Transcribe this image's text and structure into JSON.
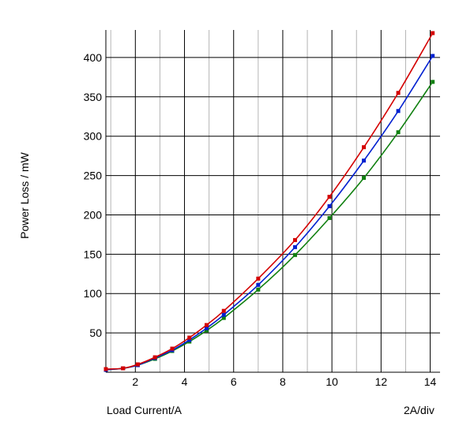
{
  "chart_data": {
    "type": "line",
    "title": "",
    "xlabel": "Load Current/A",
    "ylabel": "Power Loss / mW",
    "scale_note": "2A/div",
    "xlim": [
      0.8,
      14.4
    ],
    "ylim": [
      0,
      435
    ],
    "x_ticks": [
      2,
      4,
      6,
      8,
      10,
      12,
      14
    ],
    "x_minor_ticks": [
      1,
      3,
      5,
      7,
      9,
      11,
      13
    ],
    "y_ticks": [
      50,
      100,
      150,
      200,
      250,
      300,
      350,
      400
    ],
    "grid": true,
    "series": [
      {
        "color": "#d40000",
        "x": [
          0.8,
          1.5,
          2.1,
          2.8,
          3.5,
          4.2,
          4.9,
          5.6,
          7.0,
          8.5,
          9.9,
          11.3,
          12.7,
          14.1
        ],
        "y": [
          4,
          5,
          10,
          19,
          30,
          44,
          60,
          78,
          119,
          168,
          223,
          286,
          355,
          431
        ]
      },
      {
        "color": "#0020d0",
        "x": [
          0.8,
          1.5,
          2.1,
          2.8,
          3.5,
          4.2,
          4.9,
          5.6,
          7.0,
          8.5,
          9.9,
          11.3,
          12.7,
          14.1
        ],
        "y": [
          3,
          5,
          9,
          18,
          28,
          41,
          56,
          73,
          111,
          159,
          211,
          269,
          332,
          402
        ]
      },
      {
        "color": "#108010",
        "x": [
          0.8,
          1.5,
          2.1,
          2.8,
          3.5,
          4.2,
          4.9,
          5.6,
          7.0,
          8.5,
          9.9,
          11.3,
          12.7,
          14.1
        ],
        "y": [
          3,
          5,
          9,
          17,
          27,
          39,
          53,
          69,
          105,
          149,
          196,
          247,
          305,
          369
        ]
      }
    ]
  }
}
